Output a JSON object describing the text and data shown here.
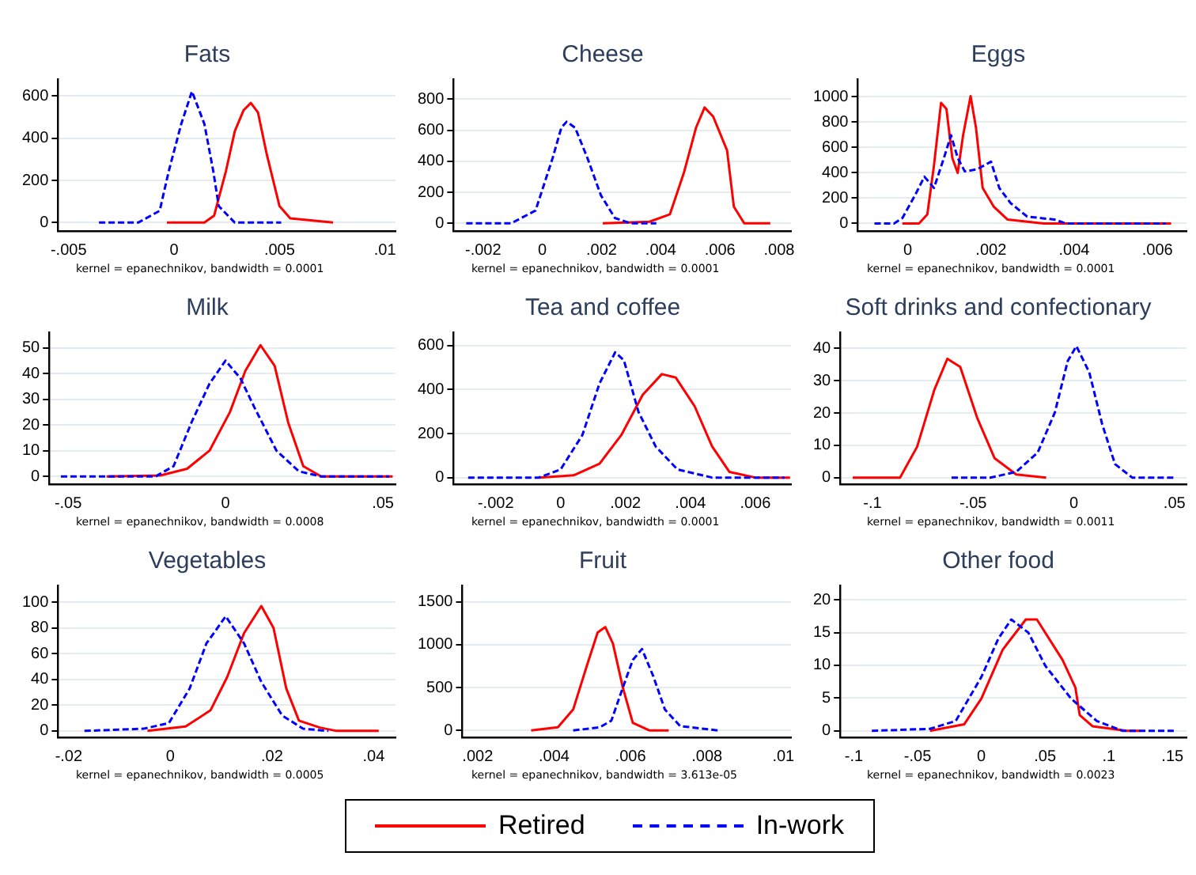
{
  "chart_data": [
    {
      "type": "line",
      "title": "Fats",
      "annotations": [
        "kernel = epanechnikov, bandwidth = 0.0001"
      ],
      "grid": "y",
      "marker": "none",
      "xlim": [
        -0.0055,
        0.0105
      ],
      "xticks": [
        {
          "value": -0.005,
          "label": "-.005"
        },
        {
          "value": 0,
          "label": "0"
        },
        {
          "value": 0.005,
          "label": ".005"
        },
        {
          "value": 0.01,
          "label": ".01"
        }
      ],
      "ylim": [
        -40,
        680
      ],
      "yticks": [
        0,
        200,
        400,
        600
      ],
      "series": [
        {
          "color": "#ff0000",
          "line_style": "solid",
          "x": [
            -0.00034,
            0.00144,
            0.0019,
            0.00246,
            0.00288,
            0.0033,
            0.00364,
            0.00398,
            0.0044,
            0.005,
            0.00551,
            0.00754
          ],
          "values": [
            0,
            0,
            33,
            244,
            433,
            533,
            567,
            522,
            322,
            78,
            20,
            0
          ]
        },
        {
          "color": "#0000ff",
          "line_style": "dashed",
          "x": [
            -0.00356,
            -0.0017,
            -0.00068,
            -0.00025,
            0.00034,
            0.00085,
            0.00144,
            0.00186,
            0.00212,
            0.00288,
            0.00508
          ],
          "values": [
            0,
            0,
            56,
            244,
            467,
            622,
            467,
            244,
            78,
            0,
            0
          ]
        }
      ]
    },
    {
      "type": "line",
      "title": "Cheese",
      "annotations": [
        "kernel = epanechnikov, bandwidth = 0.0001"
      ],
      "grid": "y",
      "marker": "none",
      "xlim": [
        -0.003,
        0.0084
      ],
      "xticks": [
        {
          "value": -0.002,
          "label": "-.002"
        },
        {
          "value": 0,
          "label": "0"
        },
        {
          "value": 0.002,
          "label": ".002"
        },
        {
          "value": 0.004,
          "label": ".004"
        },
        {
          "value": 0.006,
          "label": ".006"
        },
        {
          "value": 0.008,
          "label": ".008"
        }
      ],
      "ylim": [
        -50,
        930
      ],
      "yticks": [
        0,
        200,
        400,
        600,
        800
      ],
      "series": [
        {
          "color": "#ff0000",
          "line_style": "solid",
          "x": [
            0.00204,
            0.00362,
            0.00431,
            0.00478,
            0.00519,
            0.00548,
            0.00577,
            0.00624,
            0.00647,
            0.00682,
            0.0077
          ],
          "values": [
            0,
            10,
            58,
            325,
            616,
            747,
            689,
            470,
            107,
            0,
            0
          ]
        },
        {
          "color": "#0000ff",
          "line_style": "dashed",
          "x": [
            -0.00257,
            -0.00105,
            -0.00023,
            0.00035,
            0.00064,
            0.00082,
            0.00111,
            0.00152,
            0.00198,
            0.00245,
            0.00297,
            0.00385
          ],
          "values": [
            0,
            0,
            82,
            422,
            616,
            655,
            616,
            422,
            180,
            34,
            0,
            0
          ]
        }
      ]
    },
    {
      "type": "line",
      "title": "Eggs",
      "annotations": [
        "kernel = epanechnikov, bandwidth = 0.0001"
      ],
      "grid": "y",
      "marker": "none",
      "xlim": [
        -0.0012,
        0.0067
      ],
      "xticks": [
        {
          "value": 0,
          "label": "0"
        },
        {
          "value": 0.002,
          "label": ".002"
        },
        {
          "value": 0.004,
          "label": ".004"
        },
        {
          "value": 0.006,
          "label": ".006"
        }
      ],
      "ylim": [
        -60,
        1140
      ],
      "yticks": [
        0,
        200,
        400,
        600,
        800,
        1000
      ],
      "series": [
        {
          "color": "#ff0000",
          "line_style": "solid",
          "x": [
            -0.00013,
            0.00027,
            0.00047,
            0.00063,
            0.0008,
            0.00093,
            0.00107,
            0.0012,
            0.00133,
            0.00151,
            0.00164,
            0.0018,
            0.00207,
            0.0024,
            0.00327,
            0.00633
          ],
          "values": [
            0,
            0,
            71,
            458,
            952,
            904,
            518,
            399,
            696,
            1006,
            756,
            280,
            131,
            30,
            0,
            0
          ]
        },
        {
          "color": "#0000ff",
          "line_style": "dashed",
          "x": [
            -0.0008,
            -0.00033,
            -0.00013,
            0.00017,
            0.0004,
            0.00063,
            0.00087,
            0.00104,
            0.0012,
            0.00137,
            0.00167,
            0.002,
            0.0022,
            0.00247,
            0.00287,
            0.00353,
            0.0038,
            0.0062
          ],
          "values": [
            0,
            0,
            42,
            220,
            369,
            280,
            518,
            696,
            518,
            411,
            428,
            488,
            280,
            161,
            54,
            30,
            0,
            0
          ]
        }
      ]
    },
    {
      "type": "line",
      "title": "Milk",
      "annotations": [
        "kernel = epanechnikov, bandwidth = 0.0008"
      ],
      "grid": "y",
      "marker": "none",
      "xlim": [
        -0.056,
        0.054
      ],
      "xticks": [
        {
          "value": -0.05,
          "label": "-.05"
        },
        {
          "value": 0,
          "label": "0"
        },
        {
          "value": 0.05,
          "label": ".05"
        }
      ],
      "ylim": [
        -3,
        56
      ],
      "yticks": [
        0,
        10,
        20,
        30,
        40,
        50
      ],
      "series": [
        {
          "color": "#ff0000",
          "line_style": "solid",
          "x": [
            -0.0378,
            -0.0207,
            -0.0122,
            -0.0051,
            0.0014,
            0.0063,
            0.0111,
            0.0156,
            0.0199,
            0.0247,
            0.0304,
            0.0531
          ],
          "values": [
            0,
            0.4,
            3,
            10,
            25,
            41,
            51,
            43,
            21,
            4,
            0,
            0
          ]
        },
        {
          "color": "#0000ff",
          "line_style": "dashed",
          "x": [
            -0.0523,
            -0.0222,
            -0.0165,
            -0.0108,
            -0.0051,
            0,
            0.0048,
            0.0091,
            0.0162,
            0.0233,
            0.0304,
            0.052
          ],
          "values": [
            0,
            0,
            4,
            21,
            36,
            45,
            38,
            27,
            10,
            2,
            0,
            0
          ]
        }
      ]
    },
    {
      "type": "line",
      "title": "Tea and coffee",
      "annotations": [
        "kernel = epanechnikov, bandwidth = 0.0001"
      ],
      "grid": "y",
      "marker": "none",
      "xlim": [
        -0.0033,
        0.0071
      ],
      "xticks": [
        {
          "value": -0.002,
          "label": "-.002"
        },
        {
          "value": 0,
          "label": "0"
        },
        {
          "value": 0.002,
          "label": ".002"
        },
        {
          "value": 0.004,
          "label": ".004"
        },
        {
          "value": 0.006,
          "label": ".006"
        }
      ],
      "ylim": [
        -30,
        660
      ],
      "yticks": [
        0,
        200,
        400,
        600
      ],
      "series": [
        {
          "color": "#ff0000",
          "line_style": "solid",
          "x": [
            -0.00067,
            0.0004,
            0.0012,
            0.00187,
            0.00253,
            0.00312,
            0.00355,
            0.00413,
            0.00467,
            0.0052,
            0.006,
            0.00707
          ],
          "values": [
            0,
            10,
            63,
            193,
            376,
            470,
            454,
            324,
            141,
            26,
            0,
            0
          ]
        },
        {
          "color": "#0000ff",
          "line_style": "dashed",
          "x": [
            -0.00285,
            -0.00067,
            0,
            0.00067,
            0.0012,
            0.00168,
            0.00195,
            0.0024,
            0.00293,
            0.0036,
            0.00467,
            0.0069
          ],
          "values": [
            0,
            0,
            37,
            193,
            428,
            569,
            533,
            298,
            141,
            37,
            0,
            0
          ]
        }
      ]
    },
    {
      "type": "line",
      "title": "Soft drinks and confectionary",
      "annotations": [
        "kernel = epanechnikov, bandwidth = 0.0011"
      ],
      "grid": "y",
      "marker": "none",
      "xlim": [
        -0.116,
        0.056
      ],
      "xticks": [
        {
          "value": -0.1,
          "label": "-.1"
        },
        {
          "value": -0.05,
          "label": "-.05"
        },
        {
          "value": 0,
          "label": "0"
        },
        {
          "value": 0.05,
          "label": ".05"
        }
      ],
      "ylim": [
        -2,
        45
      ],
      "yticks": [
        0,
        10,
        20,
        30,
        40
      ],
      "series": [
        {
          "color": "#ff0000",
          "line_style": "solid",
          "x": [
            -0.1098,
            -0.0863,
            -0.0778,
            -0.0692,
            -0.0628,
            -0.0564,
            -0.0479,
            -0.0393,
            -0.0286,
            -0.0137
          ],
          "values": [
            0,
            0,
            9.6,
            27.3,
            36.8,
            34.3,
            18.4,
            6,
            1,
            0
          ]
        },
        {
          "color": "#0000ff",
          "line_style": "dashed",
          "x": [
            -0.0607,
            -0.0415,
            -0.0286,
            -0.0179,
            -0.0094,
            -0.003,
            0.0013,
            0.0077,
            0.0141,
            0.0205,
            0.0291,
            0.0504
          ],
          "values": [
            0,
            0,
            1.8,
            7.8,
            20.2,
            36.1,
            40.7,
            32.6,
            16.6,
            4.2,
            0,
            0
          ]
        }
      ]
    },
    {
      "type": "line",
      "title": "Vegetables",
      "annotations": [
        "kernel = epanechnikov, bandwidth = 0.0005"
      ],
      "grid": "y",
      "marker": "none",
      "xlim": [
        -0.0221,
        0.0443
      ],
      "xticks": [
        {
          "value": -0.02,
          "label": "-.02"
        },
        {
          "value": 0,
          "label": "0"
        },
        {
          "value": 0.02,
          "label": ".02"
        },
        {
          "value": 0.04,
          "label": ".04"
        }
      ],
      "ylim": [
        -5,
        113
      ],
      "yticks": [
        0,
        20,
        40,
        60,
        80,
        100
      ],
      "series": [
        {
          "color": "#ff0000",
          "line_style": "solid",
          "x": [
            -0.0045,
            0.003,
            0.0079,
            0.0112,
            0.0145,
            0.0179,
            0.0203,
            0.0228,
            0.0253,
            0.0294,
            0.0327,
            0.041
          ],
          "values": [
            0,
            3.4,
            16,
            42,
            76,
            97,
            80,
            33,
            8,
            2.6,
            0,
            0
          ]
        },
        {
          "color": "#0000ff",
          "line_style": "dashed",
          "x": [
            -0.0169,
            -0.0053,
            -0.0003,
            0.0038,
            0.0071,
            0.0109,
            0.0145,
            0.0179,
            0.022,
            0.0261,
            0.0311
          ],
          "values": [
            0,
            1.7,
            6,
            33,
            68,
            89,
            68,
            38,
            12,
            1.7,
            0
          ]
        }
      ]
    },
    {
      "type": "line",
      "title": "Fruit",
      "annotations": [
        "kernel = epanechnikov, bandwidth = 3.613e-05"
      ],
      "grid": "y",
      "marker": "none",
      "xlim": [
        0.0016,
        0.0102
      ],
      "xticks": [
        {
          "value": 0.002,
          "label": ".002"
        },
        {
          "value": 0.004,
          "label": ".004"
        },
        {
          "value": 0.006,
          "label": ".006"
        },
        {
          "value": 0.008,
          "label": ".008"
        },
        {
          "value": 0.01,
          "label": ".01"
        }
      ],
      "ylim": [
        -80,
        1690
      ],
      "yticks": [
        0,
        500,
        1000,
        1500
      ],
      "series": [
        {
          "color": "#ff0000",
          "line_style": "solid",
          "x": [
            0.0034,
            0.0041,
            0.0045,
            0.00486,
            0.00514,
            0.00534,
            0.00554,
            0.0058,
            0.00606,
            0.0065,
            0.007
          ],
          "values": [
            0,
            38,
            244,
            756,
            1141,
            1205,
            1013,
            500,
            90,
            0,
            0
          ]
        },
        {
          "color": "#0000ff",
          "line_style": "dashed",
          "x": [
            0.0045,
            0.0052,
            0.0055,
            0.0058,
            0.00606,
            0.0063,
            0.0066,
            0.0069,
            0.0073,
            0.0083
          ],
          "values": [
            0,
            38,
            115,
            500,
            821,
            949,
            628,
            244,
            51,
            0
          ]
        }
      ]
    },
    {
      "type": "line",
      "title": "Other food",
      "annotations": [
        "kernel = epanechnikov, bandwidth = 0.0023"
      ],
      "grid": "y",
      "marker": "none",
      "legend": "bottom",
      "xlim": [
        -0.1107,
        0.161
      ],
      "xticks": [
        {
          "value": -0.1,
          "label": "-.1"
        },
        {
          "value": -0.05,
          "label": "-.05"
        },
        {
          "value": 0,
          "label": "0"
        },
        {
          "value": 0.05,
          "label": ".05"
        },
        {
          "value": 0.1,
          "label": ".1"
        },
        {
          "value": 0.15,
          "label": ".15"
        }
      ],
      "ylim": [
        -1,
        22.2
      ],
      "yticks": [
        0,
        5,
        10,
        15,
        20
      ],
      "series": [
        {
          "name": "Retired",
          "color": "#ff0000",
          "line_style": "solid",
          "x": [
            -0.0403,
            -0.0134,
            0,
            0.0168,
            0.0302,
            0.0349,
            0.0436,
            0.0638,
            0.0738,
            0.0772,
            0.0872,
            0.1141,
            0.1242
          ],
          "values": [
            0,
            1,
            4.9,
            12.4,
            15.8,
            17,
            17,
            10.8,
            6.6,
            2.4,
            0.7,
            0,
            0
          ]
        },
        {
          "name": "In-work",
          "color": "#0000ff",
          "line_style": "dashed",
          "x": [
            -0.0859,
            -0.0403,
            -0.0201,
            0,
            0.0134,
            0.0235,
            0.0369,
            0.0503,
            0.0705,
            0.0906,
            0.1107,
            0.151
          ],
          "values": [
            0,
            0.3,
            1.5,
            8.2,
            14.1,
            17,
            15,
            9.9,
            4.9,
            1.5,
            0,
            0
          ]
        }
      ]
    }
  ]
}
